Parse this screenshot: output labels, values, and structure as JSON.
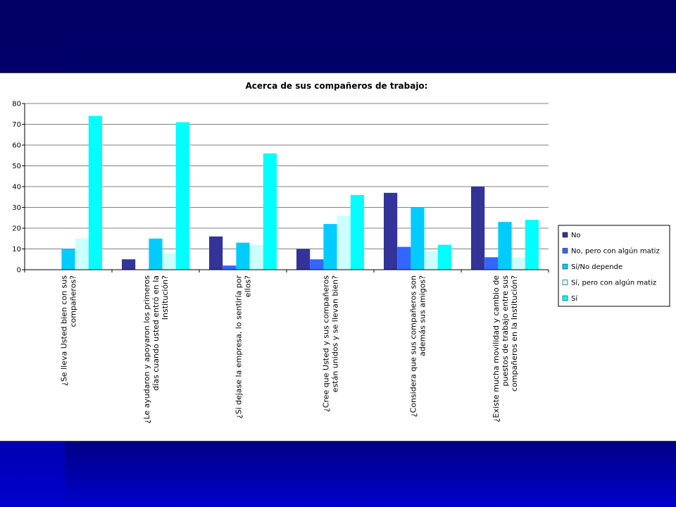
{
  "colors": {
    "background": "#000080",
    "panel": "#ffffff",
    "grid": "#808080"
  },
  "chart_data": {
    "type": "bar",
    "title": "Acerca de sus compañeros de trabajo:",
    "xlabel": "",
    "ylabel": "",
    "ylim": [
      0,
      80
    ],
    "yticks": [
      0,
      10,
      20,
      30,
      40,
      50,
      60,
      70,
      80
    ],
    "grid": true,
    "legend_position": "right",
    "categories": [
      [
        "¿Se lleva Usted bien con sus",
        "compañeros?"
      ],
      [
        "¿Le ayudaron y apoyaron los primeros",
        "días cuando usted entró en la",
        "Institución?"
      ],
      [
        "¿Si dejase la empresa, lo sentiría por",
        "ellos?"
      ],
      [
        "¿Cree que Usted y sus compañeros",
        "están unidos y se  llevan bien?"
      ],
      [
        "¿Considera que sus compañeros son",
        "además sus amigos?"
      ],
      [
        "¿Existe mucha movilidad y cambio de",
        "puestos de trabajo entre sus",
        "compañeros en la Institución?"
      ]
    ],
    "series": [
      {
        "name": "No",
        "color": "#333399",
        "values": [
          0,
          5,
          16,
          10,
          37,
          40
        ]
      },
      {
        "name": "No, pero con algún matiz",
        "color": "#3366ff",
        "values": [
          0,
          0,
          2,
          5,
          11,
          6
        ]
      },
      {
        "name": "Sí/No depende",
        "color": "#00ccff",
        "values": [
          10,
          15,
          13,
          22,
          30,
          23
        ]
      },
      {
        "name": "Sí, pero con algún matiz",
        "color": "#ccffff",
        "values": [
          15,
          8,
          12,
          26,
          9,
          6
        ]
      },
      {
        "name": "Sí",
        "color": "#00ffff",
        "values": [
          74,
          71,
          56,
          36,
          12,
          24
        ]
      }
    ]
  }
}
